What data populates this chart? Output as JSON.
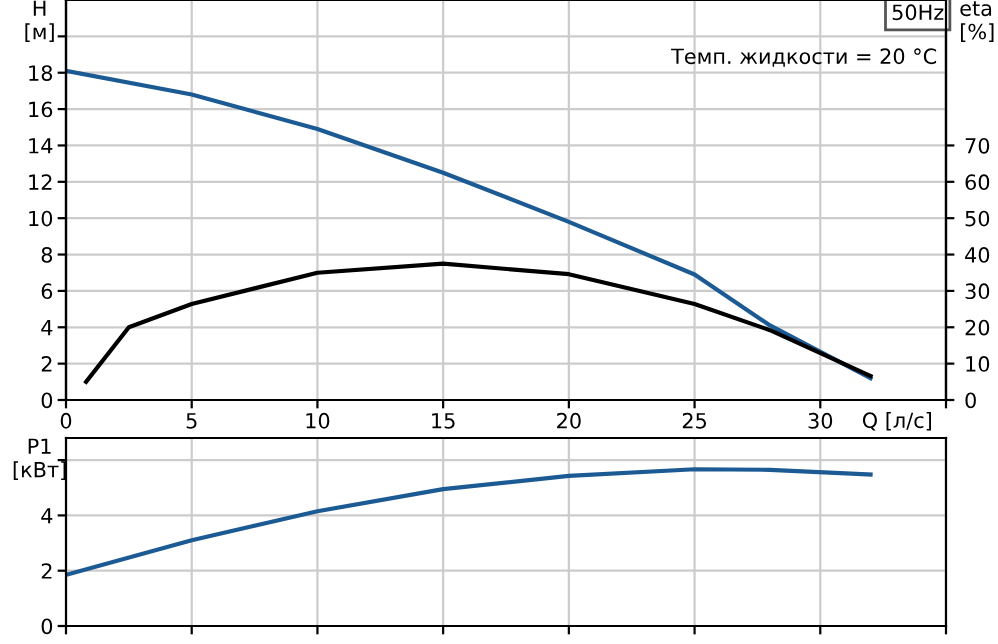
{
  "chart_data": [
    {
      "type": "line",
      "ylabel": "H\n[м]",
      "y2label": "eta\n[%]",
      "xlabel": "Q [л/с]",
      "annotations": [
        "50Hz",
        "Темп. жидкости = 20 °C"
      ],
      "series": [
        {
          "color": "#1c5a94",
          "x": [
            0,
            5,
            10,
            15,
            20,
            25,
            28,
            32
          ],
          "values": [
            18.1,
            16.8,
            14.9,
            12.5,
            9.8,
            6.9,
            4.1,
            1.2
          ]
        },
        {
          "color": "#000000",
          "axis": "y2",
          "x": [
            0.8,
            2.5,
            5,
            10,
            15,
            20,
            25,
            28,
            32
          ],
          "values": [
            5,
            20,
            26.4,
            35,
            37.5,
            34.6,
            26.4,
            19.2,
            6.6
          ]
        }
      ],
      "xlim": [
        0,
        35
      ],
      "xticks": [
        0,
        5,
        10,
        15,
        20,
        25,
        30,
        {
          "value": 35,
          "label": null
        }
      ],
      "ylim": [
        0,
        22
      ],
      "yticks": [
        0,
        2,
        4,
        6,
        8,
        10,
        12,
        14,
        16,
        18,
        {
          "value": 20,
          "label": null
        }
      ],
      "y2lim": [
        0,
        110
      ],
      "y2ticks": [
        0,
        10,
        20,
        30,
        40,
        50,
        60,
        70
      ],
      "grid": true,
      "legend": false
    },
    {
      "type": "line",
      "ylabel": "P1\n[кВт]",
      "x": [
        0,
        5,
        10,
        15,
        20,
        25,
        28,
        32
      ],
      "series": [
        {
          "color": "#1c5a94",
          "values": [
            1.85,
            3.1,
            4.15,
            4.95,
            5.43,
            5.67,
            5.65,
            5.48
          ]
        }
      ],
      "xlim": [
        0,
        35
      ],
      "xticks": [
        0,
        5,
        10,
        15,
        20,
        25,
        30,
        35
      ],
      "tick_labels": "y",
      "ylim": [
        0,
        6.8
      ],
      "yticks": [
        0,
        2,
        4,
        {
          "value": 6,
          "label": null
        }
      ],
      "grid": true,
      "legend": false
    }
  ]
}
